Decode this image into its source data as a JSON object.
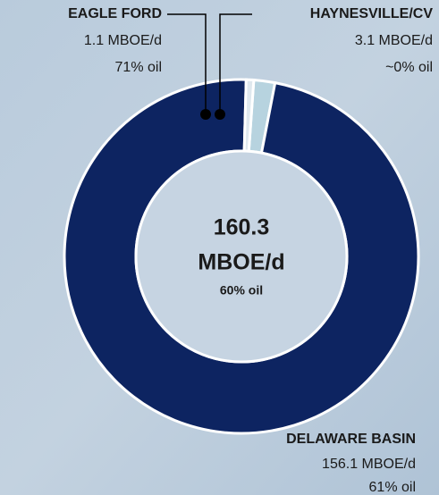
{
  "chart_data": {
    "type": "donut",
    "categories": [
      "HAYNESVILLE/CV",
      "DELAWARE BASIN",
      "EAGLE FORD"
    ],
    "values": [
      3.1,
      156.1,
      1.1
    ],
    "value_labels": [
      "3.1 MBOE/d",
      "156.1 MBOE/d",
      "1.1 MBOE/d"
    ],
    "oil_labels": [
      "~0% oil",
      "61% oil",
      "71% oil"
    ],
    "colors": [
      "#b7d3df",
      "#0d2461",
      "#dfe8ee"
    ],
    "center": {
      "total": 160.3,
      "unit": "MBOE/d",
      "oil": "60% oil"
    }
  }
}
